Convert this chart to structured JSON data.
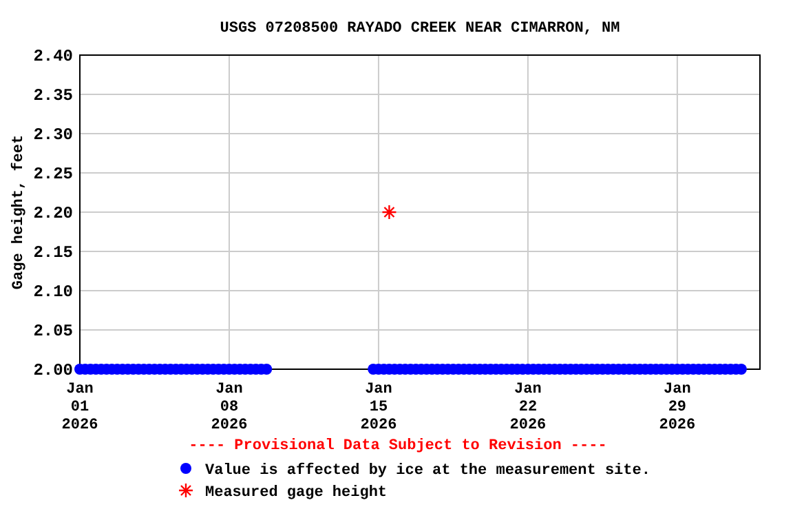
{
  "chart_data": {
    "type": "scatter",
    "title": "USGS 07208500 RAYADO CREEK NEAR CIMARRON, NM",
    "ylabel": "Gage height, feet",
    "xlim": [
      "2026-01-01T00:00",
      "2026-02-01T21:00"
    ],
    "xticks": [
      {
        "value": "2026-01-01",
        "label": "Jan\n01\n2026"
      },
      {
        "value": "2026-01-08",
        "label": "Jan\n08\n2026"
      },
      {
        "value": "2026-01-15",
        "label": "Jan\n15\n2026"
      },
      {
        "value": "2026-01-22",
        "label": "Jan\n22\n2026"
      },
      {
        "value": "2026-01-29",
        "label": "Jan\n29\n2026"
      }
    ],
    "ylim": [
      2.0,
      2.4
    ],
    "yticks": [
      {
        "value": 2.0,
        "label": "2.00"
      },
      {
        "value": 2.05,
        "label": "2.05"
      },
      {
        "value": 2.1,
        "label": "2.10"
      },
      {
        "value": 2.15,
        "label": "2.15"
      },
      {
        "value": 2.2,
        "label": "2.20"
      },
      {
        "value": 2.25,
        "label": "2.25"
      },
      {
        "value": 2.3,
        "label": "2.30"
      },
      {
        "value": 2.35,
        "label": "2.35"
      },
      {
        "value": 2.4,
        "label": "2.40"
      }
    ],
    "grid": true,
    "legend": "bottom",
    "annotations": [
      "---- Provisional Data Subject to Revision ----"
    ],
    "series": [
      {
        "name": "Value is affected by ice at the measurement site.",
        "color": "#0000ff",
        "marker": "circle",
        "x": [
          "2026-01-01T00:00",
          "2026-01-01T06:00",
          "2026-01-01T12:00",
          "2026-01-01T18:00",
          "2026-01-02T00:00",
          "2026-01-02T06:00",
          "2026-01-02T12:00",
          "2026-01-02T18:00",
          "2026-01-03T00:00",
          "2026-01-03T06:00",
          "2026-01-03T12:00",
          "2026-01-03T18:00",
          "2026-01-04T00:00",
          "2026-01-04T06:00",
          "2026-01-04T12:00",
          "2026-01-04T18:00",
          "2026-01-05T00:00",
          "2026-01-05T06:00",
          "2026-01-05T12:00",
          "2026-01-05T18:00",
          "2026-01-06T00:00",
          "2026-01-06T06:00",
          "2026-01-06T12:00",
          "2026-01-06T18:00",
          "2026-01-07T00:00",
          "2026-01-07T06:00",
          "2026-01-07T12:00",
          "2026-01-07T18:00",
          "2026-01-08T00:00",
          "2026-01-08T06:00",
          "2026-01-08T12:00",
          "2026-01-08T18:00",
          "2026-01-09T00:00",
          "2026-01-09T06:00",
          "2026-01-09T12:00",
          "2026-01-09T18:00",
          "2026-01-14T18:00",
          "2026-01-15T00:00",
          "2026-01-15T06:00",
          "2026-01-15T12:00",
          "2026-01-15T18:00",
          "2026-01-16T00:00",
          "2026-01-16T06:00",
          "2026-01-16T12:00",
          "2026-01-16T18:00",
          "2026-01-17T00:00",
          "2026-01-17T06:00",
          "2026-01-17T12:00",
          "2026-01-17T18:00",
          "2026-01-18T00:00",
          "2026-01-18T06:00",
          "2026-01-18T12:00",
          "2026-01-18T18:00",
          "2026-01-19T00:00",
          "2026-01-19T06:00",
          "2026-01-19T12:00",
          "2026-01-19T18:00",
          "2026-01-20T00:00",
          "2026-01-20T06:00",
          "2026-01-20T12:00",
          "2026-01-20T18:00",
          "2026-01-21T00:00",
          "2026-01-21T06:00",
          "2026-01-21T12:00",
          "2026-01-21T18:00",
          "2026-01-22T00:00",
          "2026-01-22T06:00",
          "2026-01-22T12:00",
          "2026-01-22T18:00",
          "2026-01-23T00:00",
          "2026-01-23T06:00",
          "2026-01-23T12:00",
          "2026-01-23T18:00",
          "2026-01-24T00:00",
          "2026-01-24T06:00",
          "2026-01-24T12:00",
          "2026-01-24T18:00",
          "2026-01-25T00:00",
          "2026-01-25T06:00",
          "2026-01-25T12:00",
          "2026-01-25T18:00",
          "2026-01-26T00:00",
          "2026-01-26T06:00",
          "2026-01-26T12:00",
          "2026-01-26T18:00",
          "2026-01-27T00:00",
          "2026-01-27T06:00",
          "2026-01-27T12:00",
          "2026-01-27T18:00",
          "2026-01-28T00:00",
          "2026-01-28T06:00",
          "2026-01-28T12:00",
          "2026-01-28T18:00",
          "2026-01-29T00:00",
          "2026-01-29T06:00",
          "2026-01-29T12:00",
          "2026-01-29T18:00",
          "2026-01-30T00:00",
          "2026-01-30T06:00",
          "2026-01-30T12:00",
          "2026-01-30T18:00",
          "2026-01-31T00:00",
          "2026-01-31T06:00",
          "2026-01-31T12:00",
          "2026-01-31T18:00",
          "2026-02-01T00:00"
        ],
        "values": [
          2.0,
          2.0,
          2.0,
          2.0,
          2.0,
          2.0,
          2.0,
          2.0,
          2.0,
          2.0,
          2.0,
          2.0,
          2.0,
          2.0,
          2.0,
          2.0,
          2.0,
          2.0,
          2.0,
          2.0,
          2.0,
          2.0,
          2.0,
          2.0,
          2.0,
          2.0,
          2.0,
          2.0,
          2.0,
          2.0,
          2.0,
          2.0,
          2.0,
          2.0,
          2.0,
          2.0,
          2.0,
          2.0,
          2.0,
          2.0,
          2.0,
          2.0,
          2.0,
          2.0,
          2.0,
          2.0,
          2.0,
          2.0,
          2.0,
          2.0,
          2.0,
          2.0,
          2.0,
          2.0,
          2.0,
          2.0,
          2.0,
          2.0,
          2.0,
          2.0,
          2.0,
          2.0,
          2.0,
          2.0,
          2.0,
          2.0,
          2.0,
          2.0,
          2.0,
          2.0,
          2.0,
          2.0,
          2.0,
          2.0,
          2.0,
          2.0,
          2.0,
          2.0,
          2.0,
          2.0,
          2.0,
          2.0,
          2.0,
          2.0,
          2.0,
          2.0,
          2.0,
          2.0,
          2.0,
          2.0,
          2.0,
          2.0,
          2.0,
          2.0,
          2.0,
          2.0,
          2.0,
          2.0,
          2.0,
          2.0,
          2.0,
          2.0,
          2.0,
          2.0,
          2.0,
          2.0
        ]
      },
      {
        "name": "Measured gage height",
        "color": "#ff0000",
        "marker": "cross",
        "x": [
          "2026-01-15T12:00"
        ],
        "values": [
          2.2
        ]
      }
    ]
  }
}
